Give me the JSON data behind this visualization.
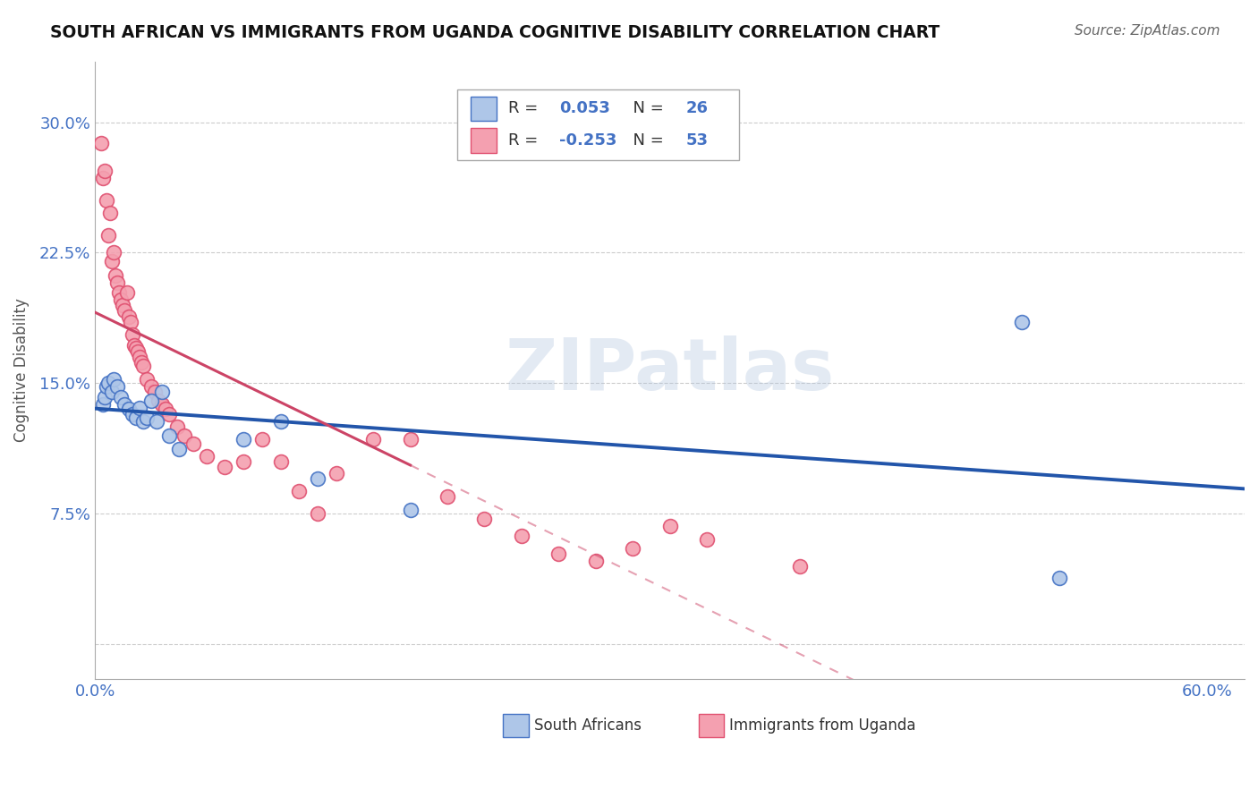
{
  "title": "SOUTH AFRICAN VS IMMIGRANTS FROM UGANDA COGNITIVE DISABILITY CORRELATION CHART",
  "source": "Source: ZipAtlas.com",
  "ylabel": "Cognitive Disability",
  "xlim": [
    0.0,
    0.62
  ],
  "ylim": [
    -0.02,
    0.335
  ],
  "ytick_vals": [
    0.0,
    0.075,
    0.15,
    0.225,
    0.3
  ],
  "ytick_labels": [
    "",
    "7.5%",
    "15.0%",
    "22.5%",
    "30.0%"
  ],
  "xtick_vals": [
    0.0,
    0.1,
    0.2,
    0.3,
    0.4,
    0.5,
    0.6
  ],
  "xtick_labels": [
    "0.0%",
    "",
    "",
    "",
    "",
    "",
    "60.0%"
  ],
  "blue_face": "#aec6e8",
  "blue_edge": "#4472c4",
  "pink_face": "#f4a0b0",
  "pink_edge": "#e05070",
  "trend_blue": "#2255aa",
  "trend_pink": "#cc4466",
  "tick_color": "#4472c4",
  "grid_color": "#cccccc",
  "watermark": "ZIPatlas",
  "r_sa": "0.053",
  "n_sa": "26",
  "r_ug": "-0.253",
  "n_ug": "53",
  "sa_x": [
    0.004,
    0.005,
    0.006,
    0.007,
    0.009,
    0.01,
    0.012,
    0.014,
    0.016,
    0.018,
    0.02,
    0.022,
    0.024,
    0.026,
    0.028,
    0.03,
    0.033,
    0.036,
    0.04,
    0.045,
    0.08,
    0.1,
    0.12,
    0.17,
    0.5,
    0.52
  ],
  "sa_y": [
    0.138,
    0.142,
    0.148,
    0.15,
    0.145,
    0.152,
    0.148,
    0.142,
    0.138,
    0.135,
    0.132,
    0.13,
    0.136,
    0.128,
    0.13,
    0.14,
    0.128,
    0.145,
    0.12,
    0.112,
    0.118,
    0.128,
    0.095,
    0.077,
    0.185,
    0.038
  ],
  "ug_x": [
    0.003,
    0.004,
    0.005,
    0.006,
    0.007,
    0.008,
    0.009,
    0.01,
    0.011,
    0.012,
    0.013,
    0.014,
    0.015,
    0.016,
    0.017,
    0.018,
    0.019,
    0.02,
    0.021,
    0.022,
    0.023,
    0.024,
    0.025,
    0.026,
    0.028,
    0.03,
    0.032,
    0.034,
    0.036,
    0.038,
    0.04,
    0.044,
    0.048,
    0.053,
    0.06,
    0.07,
    0.08,
    0.09,
    0.1,
    0.11,
    0.12,
    0.13,
    0.15,
    0.17,
    0.19,
    0.21,
    0.23,
    0.25,
    0.27,
    0.29,
    0.31,
    0.33,
    0.38
  ],
  "ug_y": [
    0.288,
    0.268,
    0.272,
    0.255,
    0.235,
    0.248,
    0.22,
    0.225,
    0.212,
    0.208,
    0.202,
    0.198,
    0.195,
    0.192,
    0.202,
    0.188,
    0.185,
    0.178,
    0.172,
    0.17,
    0.168,
    0.165,
    0.162,
    0.16,
    0.152,
    0.148,
    0.145,
    0.14,
    0.138,
    0.135,
    0.132,
    0.125,
    0.12,
    0.115,
    0.108,
    0.102,
    0.105,
    0.118,
    0.105,
    0.088,
    0.075,
    0.098,
    0.118,
    0.118,
    0.085,
    0.072,
    0.062,
    0.052,
    0.048,
    0.055,
    0.068,
    0.06,
    0.045
  ]
}
